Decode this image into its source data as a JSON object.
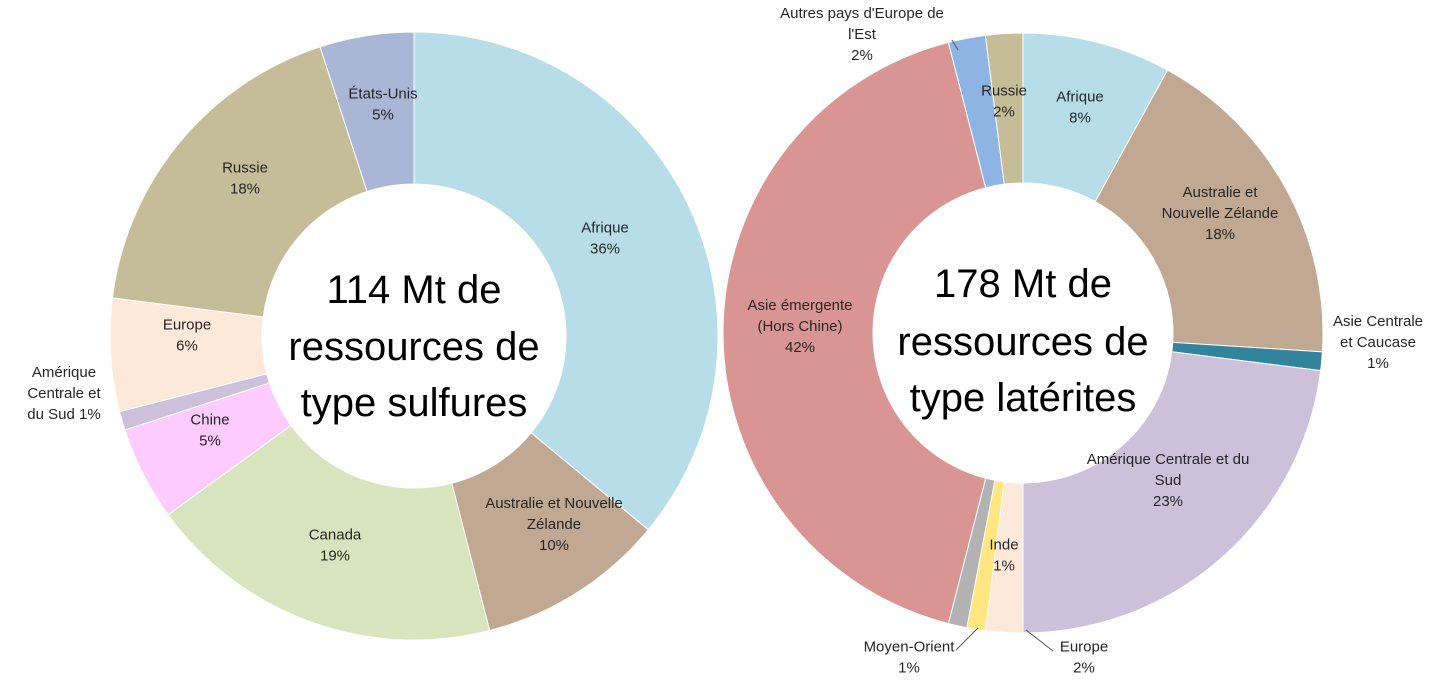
{
  "chart_data": [
    {
      "type": "donut",
      "center_text": [
        "114 Mt de",
        "ressources de",
        "type sulfures"
      ],
      "slices": [
        {
          "label": [
            "Afrique",
            "36%"
          ],
          "value": 36,
          "color": "#b7dee8"
        },
        {
          "label": [
            "Australie et Nouvelle",
            "Zélande",
            "10%"
          ],
          "value": 10,
          "color": "#c0a892"
        },
        {
          "label": [
            "Canada",
            "19%"
          ],
          "value": 19,
          "color": "#d8e4bd"
        },
        {
          "label": [
            "Chine",
            "5%"
          ],
          "value": 5,
          "color": "#fdcbfd"
        },
        {
          "label": [
            "Amérique",
            "Centrale et",
            "du Sud 1%"
          ],
          "value": 1,
          "color": "#ccc0da"
        },
        {
          "label": [
            "Europe",
            "6%"
          ],
          "value": 6,
          "color": "#fde9d9"
        },
        {
          "label": [
            "Russie",
            "18%"
          ],
          "value": 18,
          "color": "#c4bd97"
        },
        {
          "label": [
            "États-Unis",
            "5%"
          ],
          "value": 5,
          "color": "#a9b6d6"
        }
      ]
    },
    {
      "type": "donut",
      "center_text": [
        "178 Mt de",
        "ressources de",
        "type latérites"
      ],
      "slices": [
        {
          "label": [
            "Afrique",
            "8%"
          ],
          "value": 8,
          "color": "#b7dee8"
        },
        {
          "label": [
            "Australie et",
            "Nouvelle Zélande",
            "18%"
          ],
          "value": 18,
          "color": "#c0a892"
        },
        {
          "label": [
            "Asie Centrale",
            "et Caucase",
            "1%"
          ],
          "value": 1,
          "color": "#31849b"
        },
        {
          "label": [
            "Amérique Centrale et du",
            "Sud",
            "23%"
          ],
          "value": 23,
          "color": "#ccc0da"
        },
        {
          "label": [
            "Europe",
            "2%"
          ],
          "value": 2,
          "color": "#fde9d9"
        },
        {
          "label": [
            "Inde",
            "1%"
          ],
          "value": 1,
          "color": "#ffe680"
        },
        {
          "label": [
            "Moyen-Orient",
            "1%"
          ],
          "value": 1,
          "color": "#b2b2b2"
        },
        {
          "label": [
            "Asie émergente",
            "(Hors Chine)",
            "42%"
          ],
          "value": 42,
          "color": "#d99594"
        },
        {
          "label": [
            "Autres pays d'Europe de",
            "l'Est",
            "2%"
          ],
          "value": 2,
          "color": "#8eb4e3"
        },
        {
          "label": [
            "Russie",
            "2%"
          ],
          "value": 2,
          "color": "#c4bd97"
        }
      ]
    }
  ]
}
